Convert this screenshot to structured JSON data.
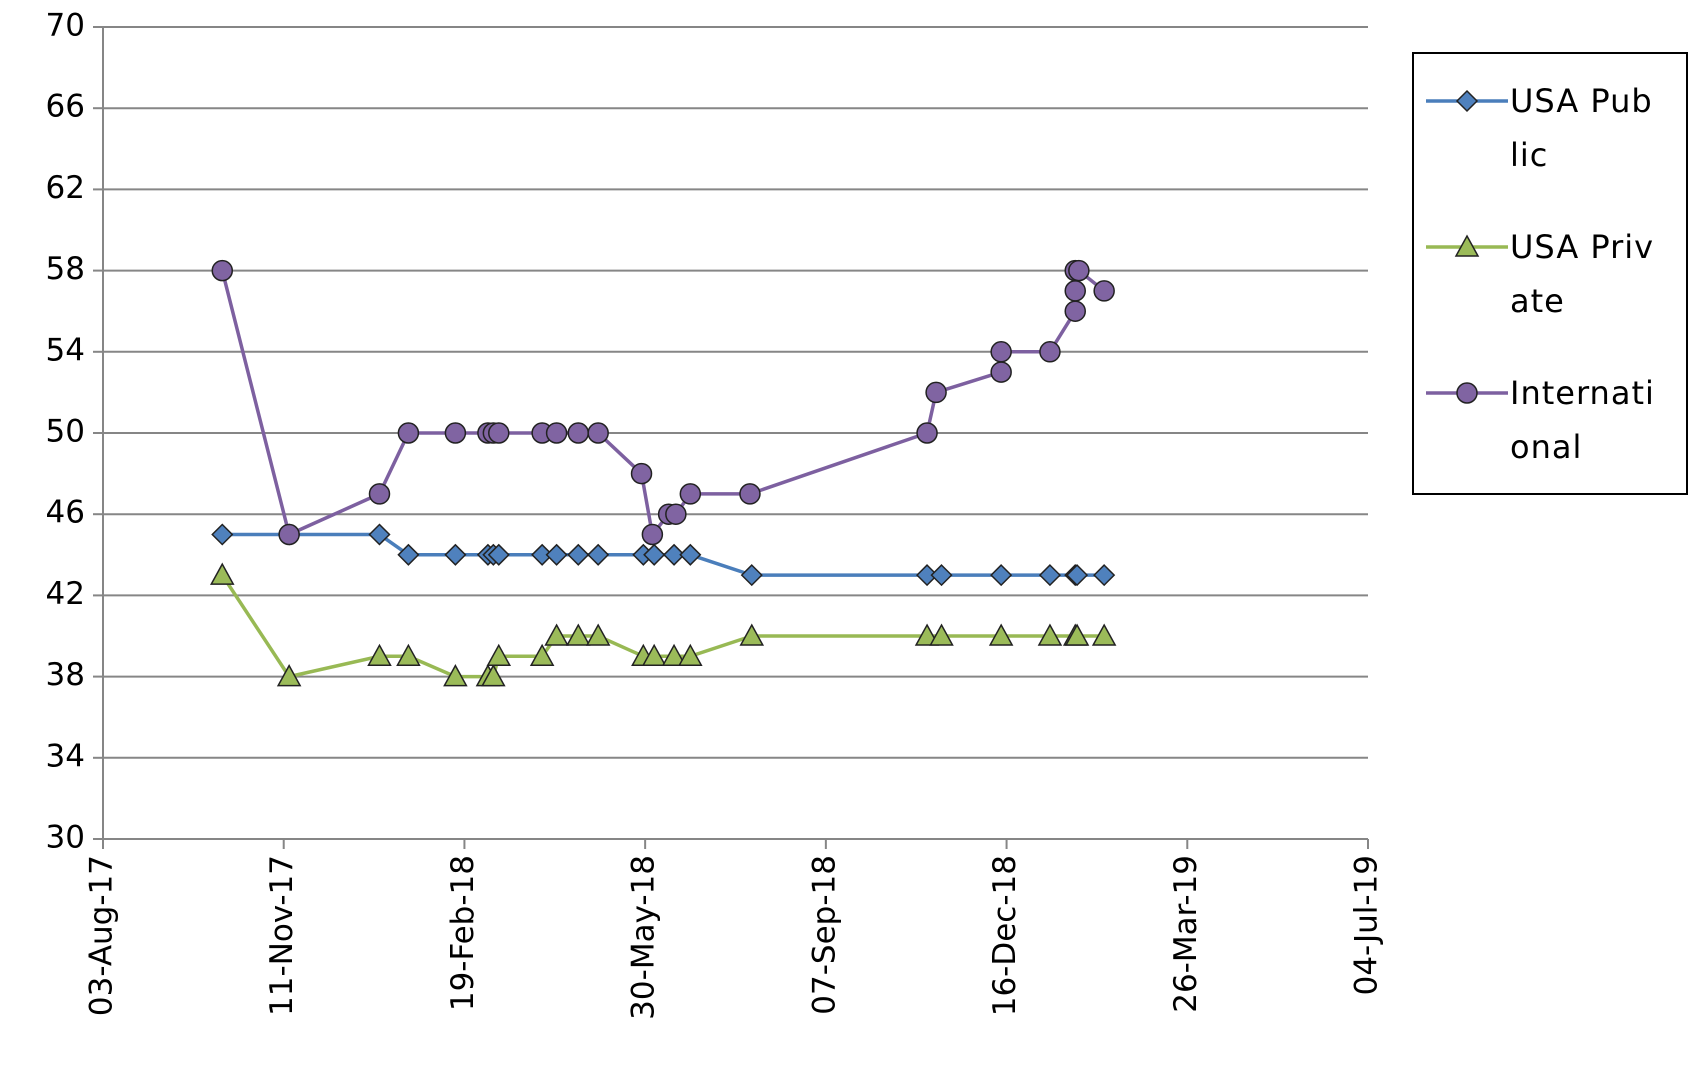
{
  "chart_data": {
    "type": "line",
    "xlim": [
      "2017-08-03",
      "2019-07-04"
    ],
    "xticks": [
      {
        "value": "2017-08-03",
        "label": "03-Aug-17"
      },
      {
        "value": "2017-11-11",
        "label": "11-Nov-17"
      },
      {
        "value": "2018-02-19",
        "label": "19-Feb-18"
      },
      {
        "value": "2018-05-30",
        "label": "30-May-18"
      },
      {
        "value": "2018-09-07",
        "label": "07-Sep-18"
      },
      {
        "value": "2018-12-16",
        "label": "16-Dec-18"
      },
      {
        "value": "2019-03-26",
        "label": "26-Mar-19"
      },
      {
        "value": "2019-07-04",
        "label": "04-Jul-19"
      }
    ],
    "ylim": [
      30,
      70
    ],
    "yticks": [
      30,
      34,
      38,
      42,
      46,
      50,
      54,
      58,
      62,
      66,
      70
    ],
    "grid": true,
    "legend_position": "right",
    "series": [
      {
        "name": "USA Public",
        "color": "#4a7ebb",
        "marker_color": "#4f81bd",
        "marker": "diamond",
        "x": [
          "2017-10-08",
          "2017-11-14",
          "2018-01-03",
          "2018-01-19",
          "2018-02-14",
          "2018-03-04",
          "2018-03-07",
          "2018-03-10",
          "2018-04-03",
          "2018-04-11",
          "2018-04-23",
          "2018-05-04",
          "2018-05-29",
          "2018-06-04",
          "2018-06-15",
          "2018-06-24",
          "2018-07-28",
          "2018-11-02",
          "2018-11-10",
          "2018-12-13",
          "2019-01-09",
          "2019-01-23",
          "2019-01-24",
          "2019-02-08"
        ],
        "values": [
          45,
          45,
          45,
          44,
          44,
          44,
          44,
          44,
          44,
          44,
          44,
          44,
          44,
          44,
          44,
          44,
          43,
          43,
          43,
          43,
          43,
          43,
          43,
          43
        ]
      },
      {
        "name": "USA Private",
        "color": "#98b954",
        "marker_color": "#9bbb59",
        "marker": "triangle",
        "x": [
          "2017-10-08",
          "2017-11-14",
          "2018-01-03",
          "2018-01-19",
          "2018-02-14",
          "2018-03-04",
          "2018-03-07",
          "2018-03-10",
          "2018-04-03",
          "2018-04-11",
          "2018-04-23",
          "2018-05-04",
          "2018-05-29",
          "2018-06-04",
          "2018-06-15",
          "2018-06-24",
          "2018-07-28",
          "2018-11-02",
          "2018-11-10",
          "2018-12-13",
          "2019-01-09",
          "2019-01-23",
          "2019-01-24",
          "2019-02-08"
        ],
        "values": [
          43,
          38,
          39,
          39,
          38,
          38,
          38,
          39,
          39,
          40,
          40,
          40,
          39,
          39,
          39,
          39,
          40,
          40,
          40,
          40,
          40,
          40,
          40,
          40
        ]
      },
      {
        "name": "International",
        "color": "#7d60a0",
        "marker_color": "#8064a2",
        "marker": "circle",
        "x": [
          "2017-10-08",
          "2017-11-14",
          "2018-01-03",
          "2018-01-19",
          "2018-02-14",
          "2018-03-04",
          "2018-03-07",
          "2018-03-10",
          "2018-04-03",
          "2018-04-11",
          "2018-04-23",
          "2018-05-04",
          "2018-05-28",
          "2018-06-03",
          "2018-06-12",
          "2018-06-16",
          "2018-06-24",
          "2018-07-27",
          "2018-11-02",
          "2018-11-07",
          "2018-12-13",
          "2018-12-13",
          "2019-01-09",
          "2019-01-23",
          "2019-01-23",
          "2019-01-23",
          "2019-01-25",
          "2019-02-08"
        ],
        "values": [
          58,
          45,
          47,
          50,
          50,
          50,
          50,
          50,
          50,
          50,
          50,
          50,
          48,
          45,
          46,
          46,
          47,
          47,
          50,
          52,
          53,
          54,
          54,
          56,
          57,
          58,
          58,
          57
        ]
      }
    ]
  }
}
